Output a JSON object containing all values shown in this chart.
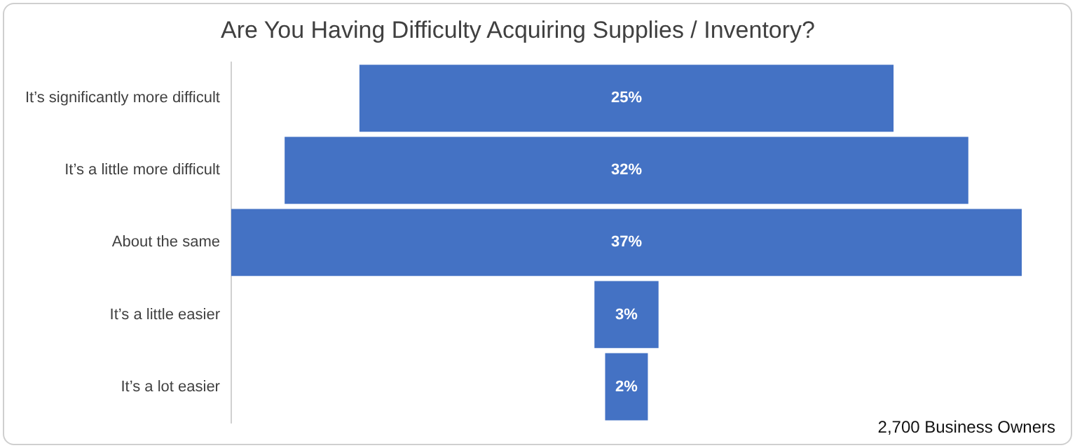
{
  "chart_data": {
    "type": "other",
    "title": "Are You Having Difficulty Acquiring Supplies / Inventory?",
    "categories": [
      "It’s significantly more difficult",
      "It’s a little more difficult",
      "About the same",
      "It’s a little easier",
      "It’s a lot easier"
    ],
    "values": [
      25,
      32,
      37,
      3,
      2
    ],
    "value_labels": [
      "25%",
      "32%",
      "37%",
      "3%",
      "2%"
    ],
    "color": "#4472c4",
    "annotations": [
      "2,700 Business Owners"
    ]
  }
}
